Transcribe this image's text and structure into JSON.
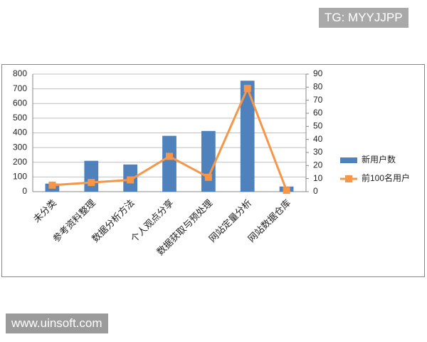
{
  "chart_data": {
    "type": "bar-line",
    "categories": [
      "未分类",
      "参考资料整理",
      "数据分析方法",
      "个人观点分享",
      "数据获取与预处理",
      "网站定量分析",
      "网站数据仓库"
    ],
    "series": [
      {
        "name": "新用户数",
        "type": "bar",
        "color": "#4f81bd",
        "values": [
          55,
          210,
          185,
          380,
          413,
          755,
          35
        ]
      },
      {
        "name": "前100名用户",
        "type": "line",
        "axis": "y2",
        "color": "#f79646",
        "values": [
          5,
          7,
          9,
          27,
          11,
          79,
          1
        ]
      }
    ],
    "ylim": [
      0,
      800
    ],
    "yticks": [
      0,
      100,
      200,
      300,
      400,
      500,
      600,
      700,
      800
    ],
    "y2lim": [
      0,
      90
    ],
    "y2ticks": [
      0,
      10,
      20,
      30,
      40,
      50,
      60,
      70,
      80,
      90
    ],
    "grid": true,
    "legend": "right"
  },
  "watermarks": [
    "TG: MYYJJPP",
    "www.uinsoft.com"
  ]
}
